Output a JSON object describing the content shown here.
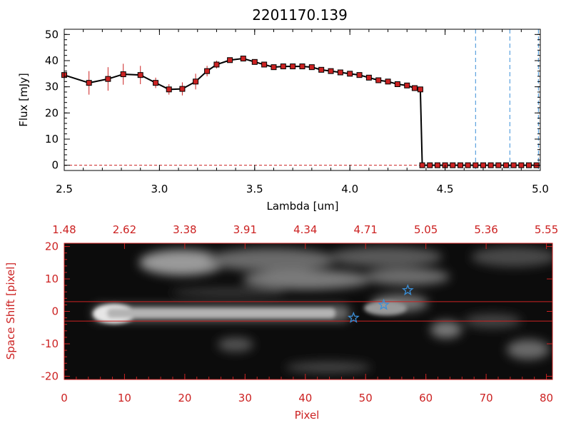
{
  "chart_data": [
    {
      "type": "line",
      "title": "2201170.139",
      "xlabel": "Lambda [um]",
      "ylabel": "Flux [mJy]",
      "xlim": [
        2.5,
        5.0
      ],
      "ylim": [
        -2,
        52
      ],
      "xticks": [
        "2.5",
        "3.0",
        "3.5",
        "4.0",
        "4.5",
        "5.0"
      ],
      "yticks": [
        "0",
        "10",
        "20",
        "30",
        "40",
        "50"
      ],
      "grid": false,
      "series": [
        {
          "x": [
            2.5,
            2.63,
            2.73,
            2.81,
            2.9,
            2.98,
            3.05,
            3.12,
            3.19,
            3.25,
            3.3,
            3.37,
            3.44,
            3.5,
            3.55,
            3.6,
            3.65,
            3.7,
            3.75,
            3.8,
            3.85,
            3.9,
            3.95,
            4.0,
            4.05,
            4.1,
            4.15,
            4.2,
            4.25,
            4.3,
            4.34,
            4.37,
            4.38,
            4.42,
            4.46,
            4.5,
            4.54,
            4.58,
            4.62,
            4.66,
            4.7,
            4.74,
            4.78,
            4.82,
            4.86,
            4.9,
            4.94,
            4.98
          ],
          "y": [
            34.5,
            31.5,
            33.0,
            34.8,
            34.5,
            31.5,
            29.0,
            29.2,
            32.0,
            36.0,
            38.5,
            40.2,
            40.8,
            39.5,
            38.5,
            37.5,
            37.8,
            37.8,
            37.8,
            37.5,
            36.5,
            36.0,
            35.5,
            35.0,
            34.5,
            33.5,
            32.5,
            32.0,
            31.0,
            30.5,
            29.5,
            29.0,
            0,
            0,
            0,
            0,
            0,
            0,
            0,
            0,
            0,
            0,
            0,
            0,
            0,
            0,
            0,
            0
          ],
          "yerr": [
            3.5,
            4.5,
            4.5,
            4.0,
            3.5,
            2.0,
            2.0,
            2.5,
            3.0,
            2.0,
            1.5,
            1.0,
            1.0,
            0.8,
            0.8,
            0.8,
            0.8,
            0.8,
            0.8,
            0.8,
            0.8,
            0.8,
            0.8,
            0.8,
            0.8,
            0.8,
            0.8,
            0.8,
            0.8,
            0.8,
            0.8,
            0.8,
            0,
            0,
            0,
            0,
            0,
            0,
            0,
            0,
            0,
            0,
            0,
            0,
            0,
            0,
            0,
            0
          ],
          "line_color": "#000000",
          "marker_color": "#cc2222",
          "errorbar_color": "#cc2222"
        }
      ],
      "vlines": [
        4.66,
        4.84,
        4.99
      ],
      "vline_color": "#3a8fd8",
      "hline": 0,
      "hline_color": "#cc2222"
    },
    {
      "type": "heatmap",
      "xlabel": "Pixel",
      "ylabel": "Space Shift [pixel]",
      "xlim": [
        0,
        81
      ],
      "ylim": [
        -21,
        21
      ],
      "xticks": [
        "0",
        "10",
        "20",
        "30",
        "40",
        "50",
        "60",
        "70",
        "80"
      ],
      "yticks": [
        "-20",
        "-10",
        "0",
        "10",
        "20"
      ],
      "top_ticks": [
        "1.48",
        "2.62",
        "3.38",
        "3.91",
        "4.34",
        "4.71",
        "5.05",
        "5.36",
        "5.55"
      ],
      "colormap": "grayscale",
      "hlines": [
        3,
        -3
      ],
      "hline_color": "#cc2222",
      "markers": [
        {
          "x": 48,
          "y": -2
        },
        {
          "x": 53,
          "y": 2
        },
        {
          "x": 57,
          "y": 6.5
        }
      ],
      "marker_color": "#3a8fd8",
      "accent_color": "#cc2222"
    }
  ]
}
